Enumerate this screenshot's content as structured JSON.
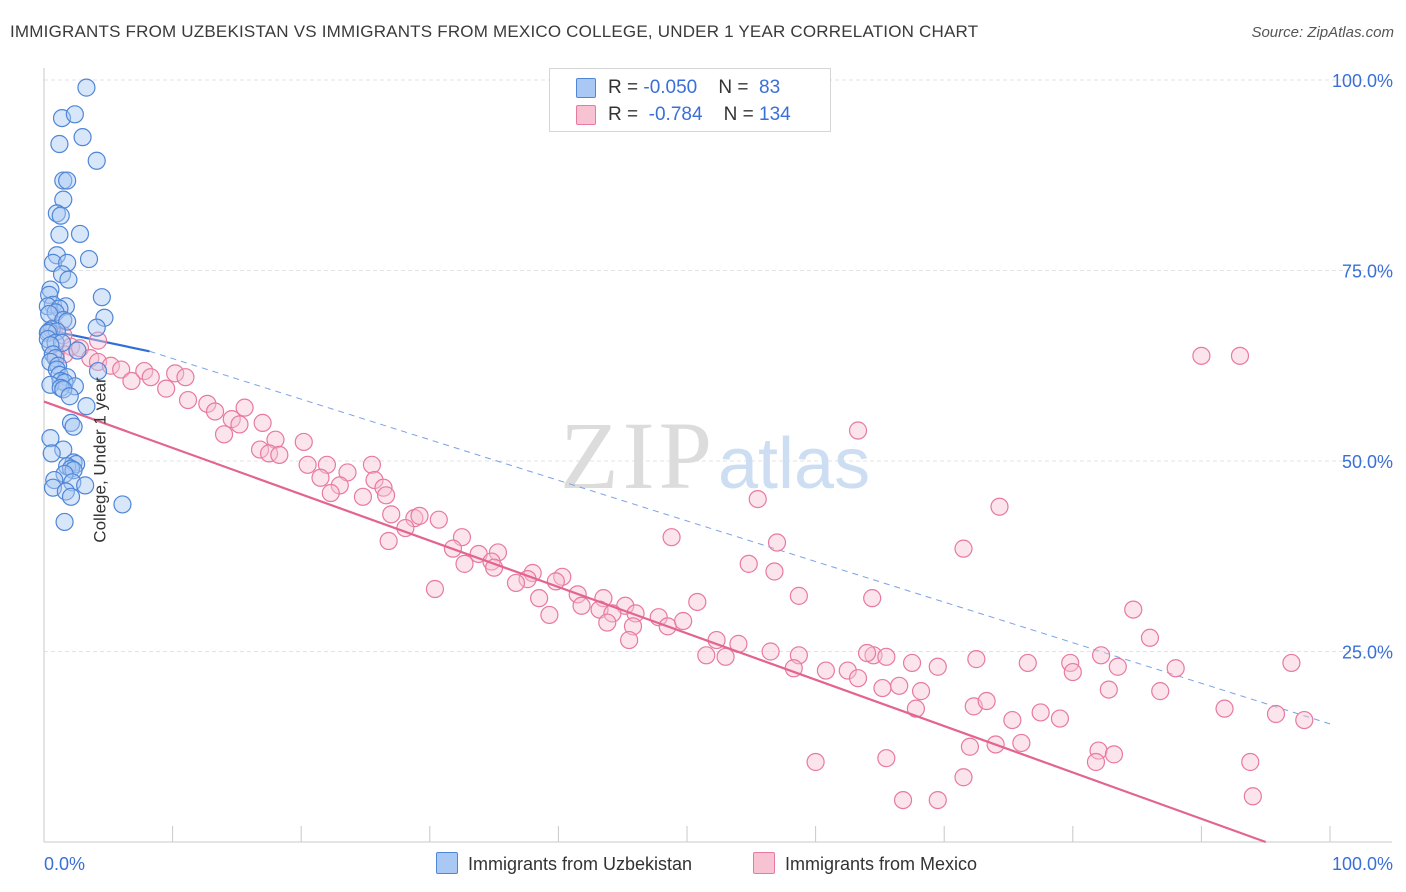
{
  "title": "IMMIGRANTS FROM UZBEKISTAN VS IMMIGRANTS FROM MEXICO COLLEGE, UNDER 1 YEAR CORRELATION CHART",
  "source": "Source: ZipAtlas.com",
  "watermark": {
    "zip": "ZIP",
    "atlas": "atlas"
  },
  "colors": {
    "uzbekistan_fill": "#a9c8f3",
    "uzbekistan_stroke": "#4f86d6",
    "uzbekistan_line": "#2f6fd6",
    "mexico_fill": "#f7c3d3",
    "mexico_stroke": "#e879a0",
    "mexico_line": "#e2648f",
    "axis_label": "#3a6fd8",
    "grid": "#e3e3e3"
  },
  "legend": {
    "rows": [
      {
        "r_label": "R = ",
        "r_value": "-0.050",
        "n_label": "N = ",
        "n_value": " 83"
      },
      {
        "r_label": "R = ",
        "r_value": " -0.784",
        "n_label": "N = ",
        "n_value": "134"
      }
    ]
  },
  "bottom_legend": {
    "uzbekistan": "Immigrants from Uzbekistan",
    "mexico": "Immigrants from Mexico"
  },
  "chart_data": {
    "type": "scatter",
    "title": "IMMIGRANTS FROM UZBEKISTAN VS IMMIGRANTS FROM MEXICO COLLEGE, UNDER 1 YEAR CORRELATION CHART",
    "xlabel": "",
    "ylabel": "College, Under 1 year",
    "xlim": [
      0,
      100
    ],
    "ylim": [
      0,
      100
    ],
    "x_ticks": [
      "0.0%",
      "100.0%"
    ],
    "y_ticks": [
      "25.0%",
      "50.0%",
      "75.0%",
      "100.0%"
    ],
    "y_tick_values": [
      25,
      50,
      75,
      100
    ],
    "grid": true,
    "legend_position": "top-center",
    "series": [
      {
        "name": "Immigrants from Uzbekistan",
        "r": -0.05,
        "n": 83,
        "trend": {
          "x": [
            0,
            8.2
          ],
          "y": [
            67.3,
            64.4
          ]
        },
        "trend_dashed": {
          "x": [
            8.2,
            100
          ],
          "y": [
            64.4,
            15.5
          ]
        },
        "points": [
          [
            3.3,
            99.0
          ],
          [
            1.4,
            95.0
          ],
          [
            2.4,
            95.5
          ],
          [
            3.0,
            92.5
          ],
          [
            1.2,
            91.6
          ],
          [
            4.1,
            89.4
          ],
          [
            1.5,
            86.8
          ],
          [
            1.8,
            86.8
          ],
          [
            1.5,
            84.3
          ],
          [
            1.0,
            82.5
          ],
          [
            1.3,
            82.2
          ],
          [
            2.8,
            79.8
          ],
          [
            1.2,
            79.7
          ],
          [
            1.0,
            77.0
          ],
          [
            3.5,
            76.5
          ],
          [
            0.7,
            76.0
          ],
          [
            1.8,
            76.0
          ],
          [
            1.4,
            74.5
          ],
          [
            1.9,
            73.8
          ],
          [
            0.5,
            72.5
          ],
          [
            0.4,
            71.8
          ],
          [
            4.5,
            71.5
          ],
          [
            0.7,
            70.5
          ],
          [
            1.7,
            70.3
          ],
          [
            0.3,
            70.3
          ],
          [
            1.2,
            70.0
          ],
          [
            0.9,
            69.5
          ],
          [
            0.4,
            69.3
          ],
          [
            4.7,
            68.8
          ],
          [
            1.5,
            68.5
          ],
          [
            1.8,
            68.3
          ],
          [
            4.1,
            67.5
          ],
          [
            0.6,
            67.3
          ],
          [
            0.4,
            67.0
          ],
          [
            1.0,
            67.0
          ],
          [
            0.3,
            66.8
          ],
          [
            0.3,
            66.0
          ],
          [
            0.9,
            65.5
          ],
          [
            1.4,
            65.5
          ],
          [
            0.5,
            65.2
          ],
          [
            2.6,
            64.5
          ],
          [
            0.7,
            64.0
          ],
          [
            0.9,
            63.5
          ],
          [
            0.5,
            63.0
          ],
          [
            1.1,
            62.5
          ],
          [
            1.0,
            62.0
          ],
          [
            4.2,
            61.8
          ],
          [
            1.2,
            61.3
          ],
          [
            1.8,
            61.0
          ],
          [
            1.3,
            60.5
          ],
          [
            1.6,
            60.3
          ],
          [
            0.5,
            60.0
          ],
          [
            2.4,
            59.8
          ],
          [
            1.3,
            59.6
          ],
          [
            1.5,
            59.4
          ],
          [
            2.0,
            58.5
          ],
          [
            3.3,
            57.2
          ],
          [
            2.1,
            55.0
          ],
          [
            2.3,
            54.5
          ],
          [
            0.5,
            53.0
          ],
          [
            1.5,
            51.5
          ],
          [
            0.6,
            51.0
          ],
          [
            2.3,
            49.8
          ],
          [
            2.5,
            49.6
          ],
          [
            1.8,
            49.3
          ],
          [
            2.1,
            49.0
          ],
          [
            2.3,
            48.8
          ],
          [
            1.6,
            48.3
          ],
          [
            0.8,
            47.5
          ],
          [
            2.2,
            47.2
          ],
          [
            3.2,
            46.8
          ],
          [
            0.7,
            46.5
          ],
          [
            1.7,
            46.0
          ],
          [
            2.1,
            45.3
          ],
          [
            6.1,
            44.3
          ],
          [
            1.6,
            42.0
          ]
        ]
      },
      {
        "name": "Immigrants from Mexico",
        "r": -0.784,
        "n": 134,
        "trend": {
          "x": [
            0,
            95
          ],
          "y": [
            57.8,
            0
          ]
        },
        "points": [
          [
            0.8,
            67.5
          ],
          [
            1.5,
            66.5
          ],
          [
            4.2,
            65.8
          ],
          [
            2.1,
            65.0
          ],
          [
            2.8,
            64.8
          ],
          [
            1.6,
            64.0
          ],
          [
            0.9,
            64.0
          ],
          [
            3.6,
            63.5
          ],
          [
            4.2,
            63.0
          ],
          [
            5.2,
            62.5
          ],
          [
            6.0,
            62.0
          ],
          [
            7.8,
            61.8
          ],
          [
            8.3,
            61.0
          ],
          [
            10.2,
            61.5
          ],
          [
            11.0,
            61.0
          ],
          [
            6.8,
            60.5
          ],
          [
            9.5,
            59.5
          ],
          [
            11.2,
            58.0
          ],
          [
            12.7,
            57.5
          ],
          [
            15.6,
            57.0
          ],
          [
            13.3,
            56.5
          ],
          [
            14.6,
            55.5
          ],
          [
            17.0,
            55.0
          ],
          [
            15.2,
            54.8
          ],
          [
            14.0,
            53.5
          ],
          [
            18.0,
            52.8
          ],
          [
            20.2,
            52.5
          ],
          [
            16.8,
            51.5
          ],
          [
            17.5,
            51.0
          ],
          [
            18.3,
            50.8
          ],
          [
            20.5,
            49.5
          ],
          [
            25.5,
            49.5
          ],
          [
            22.0,
            49.5
          ],
          [
            23.6,
            48.5
          ],
          [
            21.5,
            47.8
          ],
          [
            25.7,
            47.5
          ],
          [
            26.4,
            46.5
          ],
          [
            26.6,
            45.5
          ],
          [
            24.8,
            45.3
          ],
          [
            23.0,
            46.8
          ],
          [
            27.0,
            43.0
          ],
          [
            22.3,
            45.8
          ],
          [
            28.8,
            42.5
          ],
          [
            29.2,
            42.8
          ],
          [
            30.7,
            42.3
          ],
          [
            28.1,
            41.2
          ],
          [
            26.8,
            39.5
          ],
          [
            32.5,
            40.0
          ],
          [
            31.8,
            38.5
          ],
          [
            33.8,
            37.8
          ],
          [
            35.3,
            38.0
          ],
          [
            34.8,
            36.8
          ],
          [
            32.7,
            36.5
          ],
          [
            35.0,
            36.0
          ],
          [
            38.0,
            35.3
          ],
          [
            37.6,
            34.5
          ],
          [
            40.3,
            34.8
          ],
          [
            36.7,
            34.0
          ],
          [
            39.8,
            34.2
          ],
          [
            30.4,
            33.2
          ],
          [
            41.5,
            32.5
          ],
          [
            38.5,
            32.0
          ],
          [
            43.5,
            32.0
          ],
          [
            45.2,
            31.0
          ],
          [
            41.8,
            31.0
          ],
          [
            43.2,
            30.5
          ],
          [
            44.2,
            30.0
          ],
          [
            46.0,
            30.0
          ],
          [
            39.3,
            29.8
          ],
          [
            43.8,
            28.8
          ],
          [
            45.8,
            28.3
          ],
          [
            47.8,
            29.5
          ],
          [
            48.5,
            28.3
          ],
          [
            50.8,
            31.5
          ],
          [
            49.7,
            29.0
          ],
          [
            52.3,
            26.5
          ],
          [
            54.0,
            26.0
          ],
          [
            45.5,
            26.5
          ],
          [
            51.5,
            24.5
          ],
          [
            53.0,
            24.3
          ],
          [
            56.5,
            25.0
          ],
          [
            58.7,
            24.5
          ],
          [
            58.3,
            22.8
          ],
          [
            60.8,
            22.5
          ],
          [
            62.5,
            22.5
          ],
          [
            64.5,
            24.5
          ],
          [
            64.0,
            24.8
          ],
          [
            65.5,
            24.3
          ],
          [
            67.5,
            23.5
          ],
          [
            69.5,
            23.0
          ],
          [
            72.5,
            24.0
          ],
          [
            76.5,
            23.5
          ],
          [
            79.8,
            23.5
          ],
          [
            82.2,
            24.5
          ],
          [
            63.3,
            21.5
          ],
          [
            65.2,
            20.2
          ],
          [
            66.5,
            20.5
          ],
          [
            68.2,
            19.8
          ],
          [
            72.3,
            17.8
          ],
          [
            73.3,
            18.5
          ],
          [
            75.3,
            16.0
          ],
          [
            77.5,
            17.0
          ],
          [
            79.0,
            16.2
          ],
          [
            67.8,
            17.5
          ],
          [
            80.0,
            22.3
          ],
          [
            82.8,
            20.0
          ],
          [
            83.5,
            23.0
          ],
          [
            86.8,
            19.8
          ],
          [
            88.0,
            22.8
          ],
          [
            74.0,
            12.8
          ],
          [
            76.0,
            13.0
          ],
          [
            72.0,
            12.5
          ],
          [
            65.5,
            11.0
          ],
          [
            60.0,
            10.5
          ],
          [
            66.8,
            5.5
          ],
          [
            69.5,
            5.5
          ],
          [
            82.0,
            12.0
          ],
          [
            83.2,
            11.5
          ],
          [
            71.5,
            8.5
          ],
          [
            81.8,
            10.5
          ],
          [
            86.0,
            26.8
          ],
          [
            84.7,
            30.5
          ],
          [
            91.8,
            17.5
          ],
          [
            95.8,
            16.8
          ],
          [
            98.0,
            16.0
          ],
          [
            94.0,
            6.0
          ],
          [
            93.8,
            10.5
          ],
          [
            97.0,
            23.5
          ],
          [
            74.3,
            44.0
          ],
          [
            71.5,
            38.5
          ],
          [
            64.4,
            32.0
          ],
          [
            58.7,
            32.3
          ],
          [
            55.5,
            45.0
          ],
          [
            57.0,
            39.3
          ],
          [
            54.8,
            36.5
          ],
          [
            56.8,
            35.5
          ],
          [
            90.0,
            63.8
          ],
          [
            93.0,
            63.8
          ],
          [
            48.8,
            40.0
          ],
          [
            63.3,
            54.0
          ]
        ]
      }
    ]
  }
}
